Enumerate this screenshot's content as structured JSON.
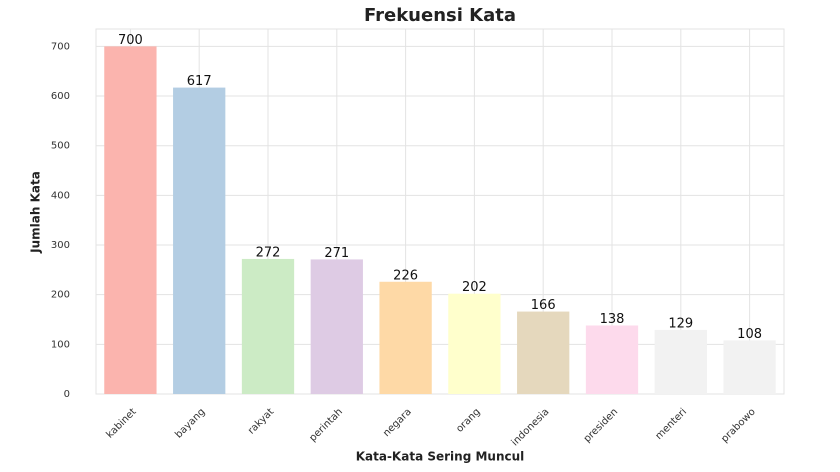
{
  "chart_data": {
    "type": "bar",
    "title": "Frekuensi Kata",
    "x_label": "Kata-Kata Sering Muncul",
    "y_label": "Jumlah Kata",
    "categories": [
      "kabinet",
      "bayang",
      "rakyat",
      "perintah",
      "negara",
      "orang",
      "indonesia",
      "presiden",
      "menteri",
      "prabowo"
    ],
    "values": [
      700,
      617,
      272,
      271,
      226,
      202,
      166,
      138,
      129,
      108
    ],
    "colors": [
      "#fbb4ae",
      "#b3cde3",
      "#ccebc5",
      "#decbe4",
      "#fed9a6",
      "#ffffcc",
      "#e5d8bd",
      "#fddaec",
      "#f2f2f2",
      "#f2f2f2"
    ],
    "ylim": [
      0,
      735
    ],
    "yticks": [
      0,
      100,
      200,
      300,
      400,
      500,
      600,
      700
    ],
    "grid": true
  }
}
